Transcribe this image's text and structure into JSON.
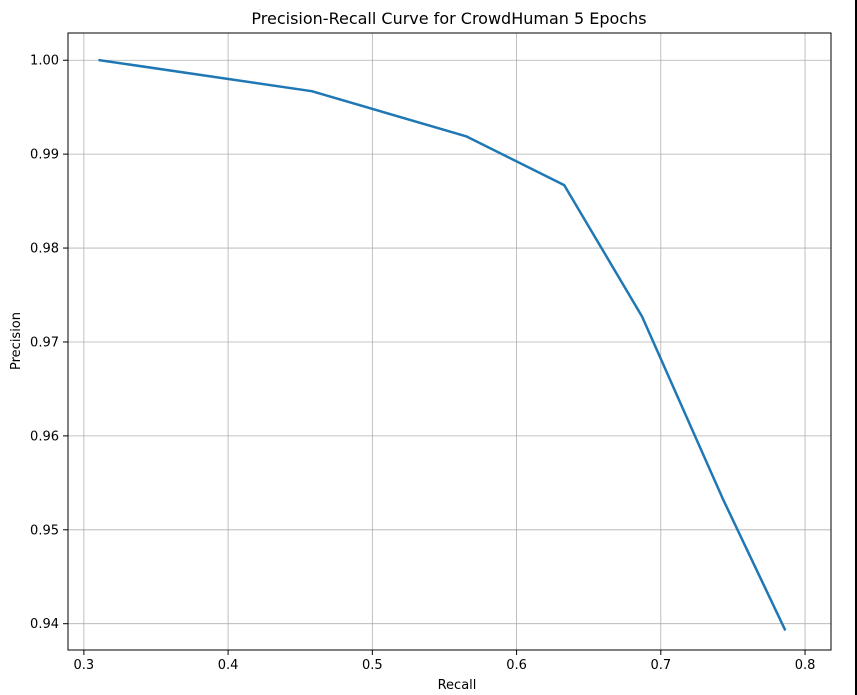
{
  "chart_data": {
    "type": "line",
    "title": "Precision-Recall Curve for CrowdHuman 5 Epochs",
    "xlabel": "Recall",
    "ylabel": "Precision",
    "xlim": [
      0.289,
      0.818
    ],
    "ylim": [
      0.9372,
      1.0029
    ],
    "grid": true,
    "xticks": [
      0.3,
      0.4,
      0.5,
      0.6,
      0.7,
      0.8
    ],
    "xtick_labels": [
      "0.3",
      "0.4",
      "0.5",
      "0.6",
      "0.7",
      "0.8"
    ],
    "yticks": [
      0.94,
      0.95,
      0.96,
      0.97,
      0.98,
      0.99,
      1.0
    ],
    "ytick_labels": [
      "0.94",
      "0.95",
      "0.96",
      "0.97",
      "0.98",
      "0.99",
      "1.00"
    ],
    "series": [
      {
        "color": "#1f77b4",
        "x": [
          0.311,
          0.458,
          0.565,
          0.633,
          0.687,
          0.743,
          0.786
        ],
        "y": [
          1.0,
          0.9967,
          0.9919,
          0.9867,
          0.9727,
          0.9533,
          0.9394
        ]
      }
    ]
  }
}
